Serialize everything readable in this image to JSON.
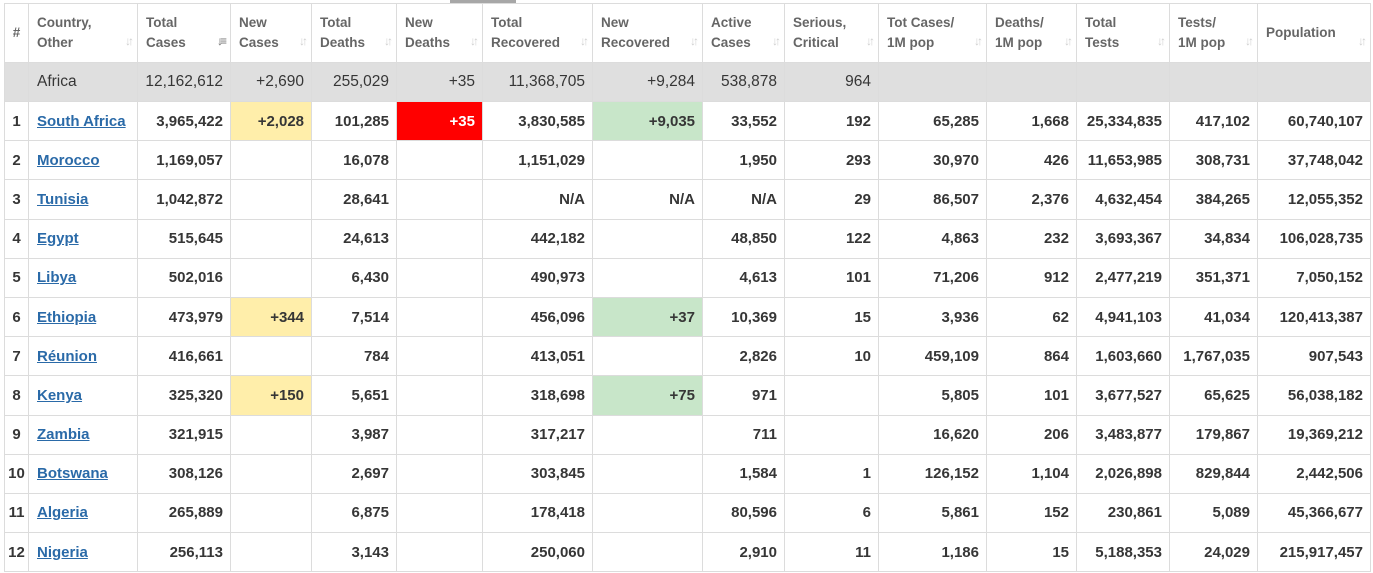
{
  "headers": [
    {
      "label": "#",
      "sort": false
    },
    {
      "label": "Country,\nOther",
      "sort": true
    },
    {
      "label": "Total\nCases",
      "sort": true,
      "active": true
    },
    {
      "label": "New\nCases",
      "sort": true
    },
    {
      "label": "Total\nDeaths",
      "sort": true
    },
    {
      "label": "New\nDeaths",
      "sort": true
    },
    {
      "label": "Total\nRecovered",
      "sort": true
    },
    {
      "label": "New\nRecovered",
      "sort": true
    },
    {
      "label": "Active\nCases",
      "sort": true
    },
    {
      "label": "Serious,\nCritical",
      "sort": true
    },
    {
      "label": "Tot Cases/\n1M pop",
      "sort": true
    },
    {
      "label": "Deaths/\n1M pop",
      "sort": true
    },
    {
      "label": "Total\nTests",
      "sort": true
    },
    {
      "label": "Tests/\n1M pop",
      "sort": true
    },
    {
      "label": "Population",
      "sort": true
    }
  ],
  "continent": {
    "name": "Africa",
    "total_cases": "12,162,612",
    "new_cases": "+2,690",
    "total_deaths": "255,029",
    "new_deaths": "+35",
    "total_recovered": "11,368,705",
    "new_recovered": "+9,284",
    "active_cases": "538,878",
    "serious": "964"
  },
  "rows": [
    {
      "idx": "1",
      "country": "South Africa",
      "total_cases": "3,965,422",
      "new_cases": "+2,028",
      "total_deaths": "101,285",
      "new_deaths": "+35",
      "total_recovered": "3,830,585",
      "new_recovered": "+9,035",
      "active_cases": "33,552",
      "serious": "192",
      "cases_1m": "65,285",
      "deaths_1m": "1,668",
      "total_tests": "25,334,835",
      "tests_1m": "417,102",
      "population": "60,740,107"
    },
    {
      "idx": "2",
      "country": "Morocco",
      "total_cases": "1,169,057",
      "new_cases": "",
      "total_deaths": "16,078",
      "new_deaths": "",
      "total_recovered": "1,151,029",
      "new_recovered": "",
      "active_cases": "1,950",
      "serious": "293",
      "cases_1m": "30,970",
      "deaths_1m": "426",
      "total_tests": "11,653,985",
      "tests_1m": "308,731",
      "population": "37,748,042"
    },
    {
      "idx": "3",
      "country": "Tunisia",
      "total_cases": "1,042,872",
      "new_cases": "",
      "total_deaths": "28,641",
      "new_deaths": "",
      "total_recovered": "N/A",
      "new_recovered": "N/A",
      "active_cases": "N/A",
      "serious": "29",
      "cases_1m": "86,507",
      "deaths_1m": "2,376",
      "total_tests": "4,632,454",
      "tests_1m": "384,265",
      "population": "12,055,352"
    },
    {
      "idx": "4",
      "country": "Egypt",
      "total_cases": "515,645",
      "new_cases": "",
      "total_deaths": "24,613",
      "new_deaths": "",
      "total_recovered": "442,182",
      "new_recovered": "",
      "active_cases": "48,850",
      "serious": "122",
      "cases_1m": "4,863",
      "deaths_1m": "232",
      "total_tests": "3,693,367",
      "tests_1m": "34,834",
      "population": "106,028,735"
    },
    {
      "idx": "5",
      "country": "Libya",
      "total_cases": "502,016",
      "new_cases": "",
      "total_deaths": "6,430",
      "new_deaths": "",
      "total_recovered": "490,973",
      "new_recovered": "",
      "active_cases": "4,613",
      "serious": "101",
      "cases_1m": "71,206",
      "deaths_1m": "912",
      "total_tests": "2,477,219",
      "tests_1m": "351,371",
      "population": "7,050,152"
    },
    {
      "idx": "6",
      "country": "Ethiopia",
      "total_cases": "473,979",
      "new_cases": "+344",
      "total_deaths": "7,514",
      "new_deaths": "",
      "total_recovered": "456,096",
      "new_recovered": "+37",
      "active_cases": "10,369",
      "serious": "15",
      "cases_1m": "3,936",
      "deaths_1m": "62",
      "total_tests": "4,941,103",
      "tests_1m": "41,034",
      "population": "120,413,387"
    },
    {
      "idx": "7",
      "country": "Réunion",
      "total_cases": "416,661",
      "new_cases": "",
      "total_deaths": "784",
      "new_deaths": "",
      "total_recovered": "413,051",
      "new_recovered": "",
      "active_cases": "2,826",
      "serious": "10",
      "cases_1m": "459,109",
      "deaths_1m": "864",
      "total_tests": "1,603,660",
      "tests_1m": "1,767,035",
      "population": "907,543"
    },
    {
      "idx": "8",
      "country": "Kenya",
      "total_cases": "325,320",
      "new_cases": "+150",
      "total_deaths": "5,651",
      "new_deaths": "",
      "total_recovered": "318,698",
      "new_recovered": "+75",
      "active_cases": "971",
      "serious": "",
      "cases_1m": "5,805",
      "deaths_1m": "101",
      "total_tests": "3,677,527",
      "tests_1m": "65,625",
      "population": "56,038,182"
    },
    {
      "idx": "9",
      "country": "Zambia",
      "total_cases": "321,915",
      "new_cases": "",
      "total_deaths": "3,987",
      "new_deaths": "",
      "total_recovered": "317,217",
      "new_recovered": "",
      "active_cases": "711",
      "serious": "",
      "cases_1m": "16,620",
      "deaths_1m": "206",
      "total_tests": "3,483,877",
      "tests_1m": "179,867",
      "population": "19,369,212"
    },
    {
      "idx": "10",
      "country": "Botswana",
      "total_cases": "308,126",
      "new_cases": "",
      "total_deaths": "2,697",
      "new_deaths": "",
      "total_recovered": "303,845",
      "new_recovered": "",
      "active_cases": "1,584",
      "serious": "1",
      "cases_1m": "126,152",
      "deaths_1m": "1,104",
      "total_tests": "2,026,898",
      "tests_1m": "829,844",
      "population": "2,442,506"
    },
    {
      "idx": "11",
      "country": "Algeria",
      "total_cases": "265,889",
      "new_cases": "",
      "total_deaths": "6,875",
      "new_deaths": "",
      "total_recovered": "178,418",
      "new_recovered": "",
      "active_cases": "80,596",
      "serious": "6",
      "cases_1m": "5,861",
      "deaths_1m": "152",
      "total_tests": "230,861",
      "tests_1m": "5,089",
      "population": "45,366,677"
    },
    {
      "idx": "12",
      "country": "Nigeria",
      "total_cases": "256,113",
      "new_cases": "",
      "total_deaths": "3,143",
      "new_deaths": "",
      "total_recovered": "250,060",
      "new_recovered": "",
      "active_cases": "2,910",
      "serious": "11",
      "cases_1m": "1,186",
      "deaths_1m": "15",
      "total_tests": "5,188,353",
      "tests_1m": "24,029",
      "population": "215,917,457"
    }
  ],
  "sort_icon": "sort-arrows-icon",
  "colors": {
    "new_cases": "#ffeeaa",
    "new_deaths": "#ff0000",
    "new_recovered": "#c8e6c9",
    "link": "#2a6aa8"
  }
}
